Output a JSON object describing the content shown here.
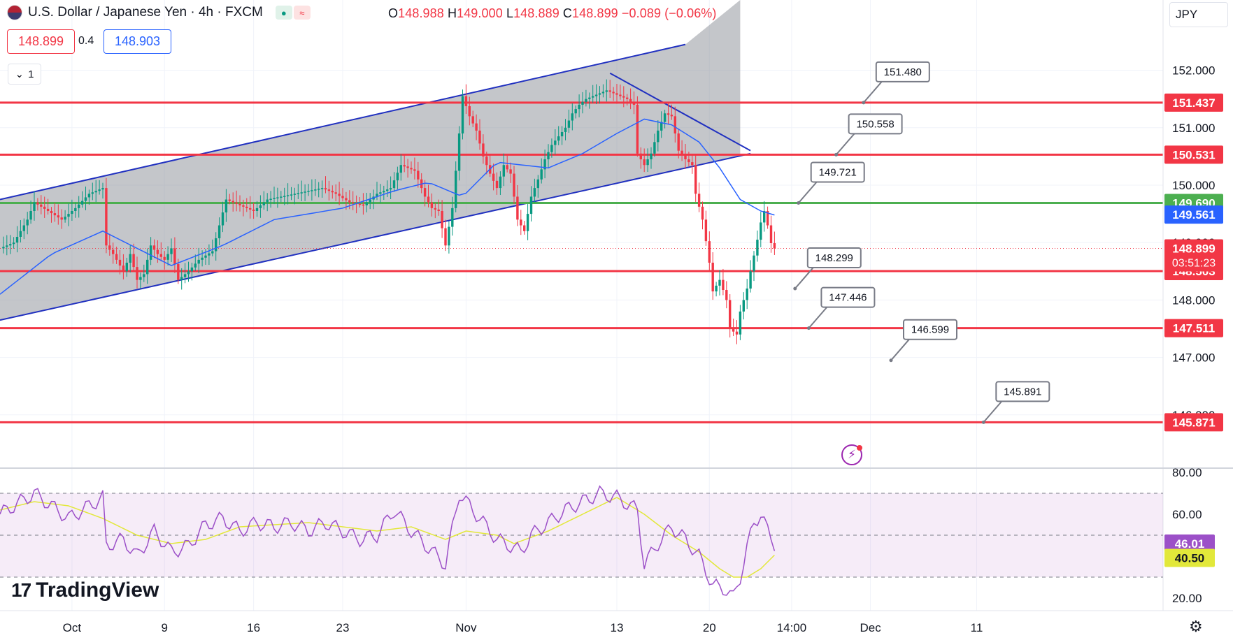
{
  "header": {
    "title": "U.S. Dollar / Japanese Yen · 4h · FXCM",
    "ohlc": {
      "o": "148.988",
      "h": "149.000",
      "l": "148.889",
      "c": "148.899",
      "chg": "−0.089 (−0.06%)"
    },
    "sell": "148.899",
    "spread": "0.4",
    "buy": "148.903",
    "collapse": "1",
    "currency": "JPY"
  },
  "branding": "TradingView",
  "icons": {
    "flag": "us-flag-icon",
    "chevron": "chevron-down-icon",
    "settings": "gear-icon",
    "alert": "lightning-icon"
  },
  "colors": {
    "up": "#089981",
    "down": "#f23645",
    "channel": "#2030c0",
    "sma": "#2962ff",
    "resistance": "#f23645",
    "pivot": "#4caf50",
    "rsi": "#9c50c8",
    "rsi_ma": "#e2e83a"
  },
  "chart_data": [
    {
      "type": "candlestick",
      "title": "U.S. Dollar / Japanese Yen · 4h · FXCM",
      "ylim": [
        145.8,
        152.1
      ],
      "yticks": [
        "152.000",
        "151.000",
        "150.000",
        "149.000",
        "148.000",
        "147.000",
        "146.000"
      ],
      "xticks": [
        {
          "label": "Oct",
          "bar": 21
        },
        {
          "label": "9",
          "bar": 48
        },
        {
          "label": "16",
          "bar": 74
        },
        {
          "label": "23",
          "bar": 100
        },
        {
          "label": "Nov",
          "bar": 136
        },
        {
          "label": "13",
          "bar": 180
        },
        {
          "label": "20",
          "bar": 207
        },
        {
          "label": "14:00",
          "bar": 231
        },
        {
          "label": "Dec",
          "bar": 254
        },
        {
          "label": "11",
          "bar": 285
        }
      ],
      "close_path": [
        [
          0,
          148.9
        ],
        [
          4,
          149.0
        ],
        [
          8,
          149.4
        ],
        [
          10,
          149.7
        ],
        [
          14,
          149.55
        ],
        [
          18,
          149.4
        ],
        [
          22,
          149.6
        ],
        [
          26,
          149.85
        ],
        [
          30,
          149.95
        ],
        [
          31,
          148.95
        ],
        [
          33,
          148.8
        ],
        [
          36,
          148.5
        ],
        [
          38,
          148.8
        ],
        [
          40,
          148.35
        ],
        [
          42,
          148.45
        ],
        [
          44,
          148.95
        ],
        [
          46,
          148.8
        ],
        [
          48,
          148.7
        ],
        [
          50,
          148.9
        ],
        [
          52,
          148.35
        ],
        [
          55,
          148.5
        ],
        [
          58,
          148.7
        ],
        [
          62,
          148.85
        ],
        [
          66,
          149.75
        ],
        [
          70,
          149.65
        ],
        [
          74,
          149.55
        ],
        [
          78,
          149.75
        ],
        [
          82,
          149.8
        ],
        [
          86,
          149.85
        ],
        [
          90,
          149.9
        ],
        [
          94,
          149.95
        ],
        [
          98,
          149.85
        ],
        [
          102,
          149.7
        ],
        [
          106,
          149.65
        ],
        [
          110,
          149.85
        ],
        [
          114,
          149.95
        ],
        [
          117,
          150.35
        ],
        [
          121,
          150.25
        ],
        [
          124,
          149.8
        ],
        [
          126,
          149.6
        ],
        [
          128,
          149.55
        ],
        [
          130,
          148.95
        ],
        [
          132,
          149.6
        ],
        [
          134,
          150.9
        ],
        [
          135,
          151.55
        ],
        [
          137,
          151.2
        ],
        [
          139,
          150.95
        ],
        [
          141,
          150.5
        ],
        [
          143,
          150.2
        ],
        [
          145,
          149.95
        ],
        [
          147,
          150.35
        ],
        [
          149,
          150.2
        ],
        [
          151,
          149.4
        ],
        [
          153,
          149.2
        ],
        [
          155,
          149.8
        ],
        [
          157,
          150.1
        ],
        [
          159,
          150.45
        ],
        [
          161,
          150.7
        ],
        [
          163,
          150.85
        ],
        [
          165,
          151.0
        ],
        [
          167,
          151.25
        ],
        [
          169,
          151.4
        ],
        [
          171,
          151.5
        ],
        [
          173,
          151.55
        ],
        [
          175,
          151.6
        ],
        [
          177,
          151.65
        ],
        [
          179,
          151.6
        ],
        [
          181,
          151.55
        ],
        [
          183,
          151.5
        ],
        [
          185,
          151.4
        ],
        [
          186,
          150.55
        ],
        [
          188,
          150.35
        ],
        [
          190,
          150.55
        ],
        [
          192,
          150.95
        ],
        [
          194,
          151.25
        ],
        [
          196,
          151.2
        ],
        [
          198,
          150.6
        ],
        [
          200,
          150.45
        ],
        [
          202,
          150.35
        ],
        [
          203,
          149.85
        ],
        [
          205,
          149.4
        ],
        [
          207,
          148.65
        ],
        [
          208,
          148.15
        ],
        [
          210,
          148.35
        ],
        [
          212,
          148.0
        ],
        [
          213,
          147.5
        ],
        [
          215,
          147.4
        ],
        [
          216,
          147.8
        ],
        [
          218,
          148.2
        ],
        [
          219,
          148.5
        ],
        [
          221,
          149.05
        ],
        [
          222,
          149.35
        ],
        [
          223,
          149.55
        ],
        [
          224,
          149.3
        ],
        [
          225,
          148.99
        ],
        [
          226,
          148.899
        ]
      ],
      "sma": [
        [
          0,
          148.1
        ],
        [
          15,
          148.8
        ],
        [
          30,
          149.2
        ],
        [
          50,
          148.6
        ],
        [
          65,
          148.95
        ],
        [
          80,
          149.4
        ],
        [
          100,
          149.6
        ],
        [
          115,
          149.9
        ],
        [
          125,
          150.05
        ],
        [
          135,
          149.8
        ],
        [
          145,
          150.4
        ],
        [
          160,
          150.3
        ],
        [
          170,
          150.55
        ],
        [
          180,
          150.9
        ],
        [
          188,
          151.15
        ],
        [
          196,
          151.05
        ],
        [
          204,
          150.75
        ],
        [
          210,
          150.3
        ],
        [
          216,
          149.75
        ],
        [
          222,
          149.55
        ],
        [
          226,
          149.48
        ]
      ],
      "channel": {
        "upper": [
          [
            0,
            149.75
          ],
          [
            200,
            152.45
          ]
        ],
        "lower": [
          [
            0,
            147.65
          ],
          [
            219,
            150.55
          ]
        ]
      },
      "trendline": [
        [
          178,
          151.95
        ],
        [
          219,
          150.6
        ]
      ],
      "levels": [
        {
          "price": 151.437,
          "label": "151.437",
          "color": "#f23645"
        },
        {
          "price": 150.531,
          "label": "150.531",
          "color": "#f23645"
        },
        {
          "price": 149.69,
          "label": "149.690",
          "color": "#4caf50"
        },
        {
          "price": 148.503,
          "label": "148.503",
          "color": "#f23645"
        },
        {
          "price": 147.511,
          "label": "147.511",
          "color": "#f23645"
        },
        {
          "price": 145.871,
          "label": "145.871",
          "color": "#f23645"
        }
      ],
      "sma_value": "149.561",
      "last_price": "148.899",
      "countdown": "03:51:23",
      "callouts": [
        {
          "text": "151.480",
          "bar": 252,
          "price": 151.437
        },
        {
          "text": "150.558",
          "bar": 244,
          "price": 150.531
        },
        {
          "text": "149.721",
          "bar": 233,
          "price": 149.69
        },
        {
          "text": "148.299",
          "bar": 232,
          "price": 148.2
        },
        {
          "text": "147.446",
          "bar": 236,
          "price": 147.511
        },
        {
          "text": "146.599",
          "bar": 260,
          "price": 146.95
        },
        {
          "text": "145.891",
          "bar": 287,
          "price": 145.871
        }
      ]
    },
    {
      "type": "line",
      "title": "",
      "ylim": [
        20,
        80
      ],
      "yticks": [
        "80.00",
        "60.00",
        "40.00",
        "20.00"
      ],
      "bands": [
        70,
        50,
        30
      ],
      "series": [
        {
          "values": [
            [
              0,
              60
            ],
            [
              10,
              70
            ],
            [
              20,
              58
            ],
            [
              30,
              68
            ],
            [
              31,
              45
            ],
            [
              36,
              48
            ],
            [
              40,
              40
            ],
            [
              45,
              52
            ],
            [
              50,
              42
            ],
            [
              55,
              45
            ],
            [
              60,
              55
            ],
            [
              65,
              58
            ],
            [
              70,
              52
            ],
            [
              75,
              56
            ],
            [
              80,
              54
            ],
            [
              85,
              56
            ],
            [
              90,
              52
            ],
            [
              95,
              56
            ],
            [
              100,
              52
            ],
            [
              105,
              48
            ],
            [
              110,
              50
            ],
            [
              115,
              62
            ],
            [
              120,
              52
            ],
            [
              125,
              44
            ],
            [
              130,
              36
            ],
            [
              134,
              70
            ],
            [
              136,
              66
            ],
            [
              140,
              58
            ],
            [
              145,
              48
            ],
            [
              150,
              44
            ],
            [
              152,
              42
            ],
            [
              155,
              50
            ],
            [
              160,
              56
            ],
            [
              165,
              62
            ],
            [
              170,
              66
            ],
            [
              175,
              70
            ],
            [
              180,
              68
            ],
            [
              186,
              62
            ],
            [
              188,
              36
            ],
            [
              192,
              46
            ],
            [
              196,
              54
            ],
            [
              200,
              48
            ],
            [
              204,
              40
            ],
            [
              208,
              26
            ],
            [
              212,
              24
            ],
            [
              214,
              20
            ],
            [
              216,
              30
            ],
            [
              218,
              44
            ],
            [
              220,
              56
            ],
            [
              222,
              60
            ],
            [
              224,
              52
            ],
            [
              226,
              46
            ]
          ]
        },
        {
          "values": [
            [
              0,
              62
            ],
            [
              10,
              66
            ],
            [
              20,
              64
            ],
            [
              30,
              58
            ],
            [
              40,
              50
            ],
            [
              50,
              46
            ],
            [
              60,
              48
            ],
            [
              70,
              54
            ],
            [
              80,
              55
            ],
            [
              90,
              56
            ],
            [
              100,
              54
            ],
            [
              110,
              52
            ],
            [
              120,
              54
            ],
            [
              130,
              48
            ],
            [
              136,
              52
            ],
            [
              145,
              50
            ],
            [
              150,
              46
            ],
            [
              160,
              52
            ],
            [
              170,
              60
            ],
            [
              180,
              68
            ],
            [
              188,
              60
            ],
            [
              196,
              50
            ],
            [
              204,
              42
            ],
            [
              210,
              34
            ],
            [
              214,
              30
            ],
            [
              218,
              30
            ],
            [
              222,
              34
            ],
            [
              226,
              40.5
            ]
          ]
        }
      ],
      "value_labels": [
        "46.01",
        "40.50"
      ]
    }
  ]
}
